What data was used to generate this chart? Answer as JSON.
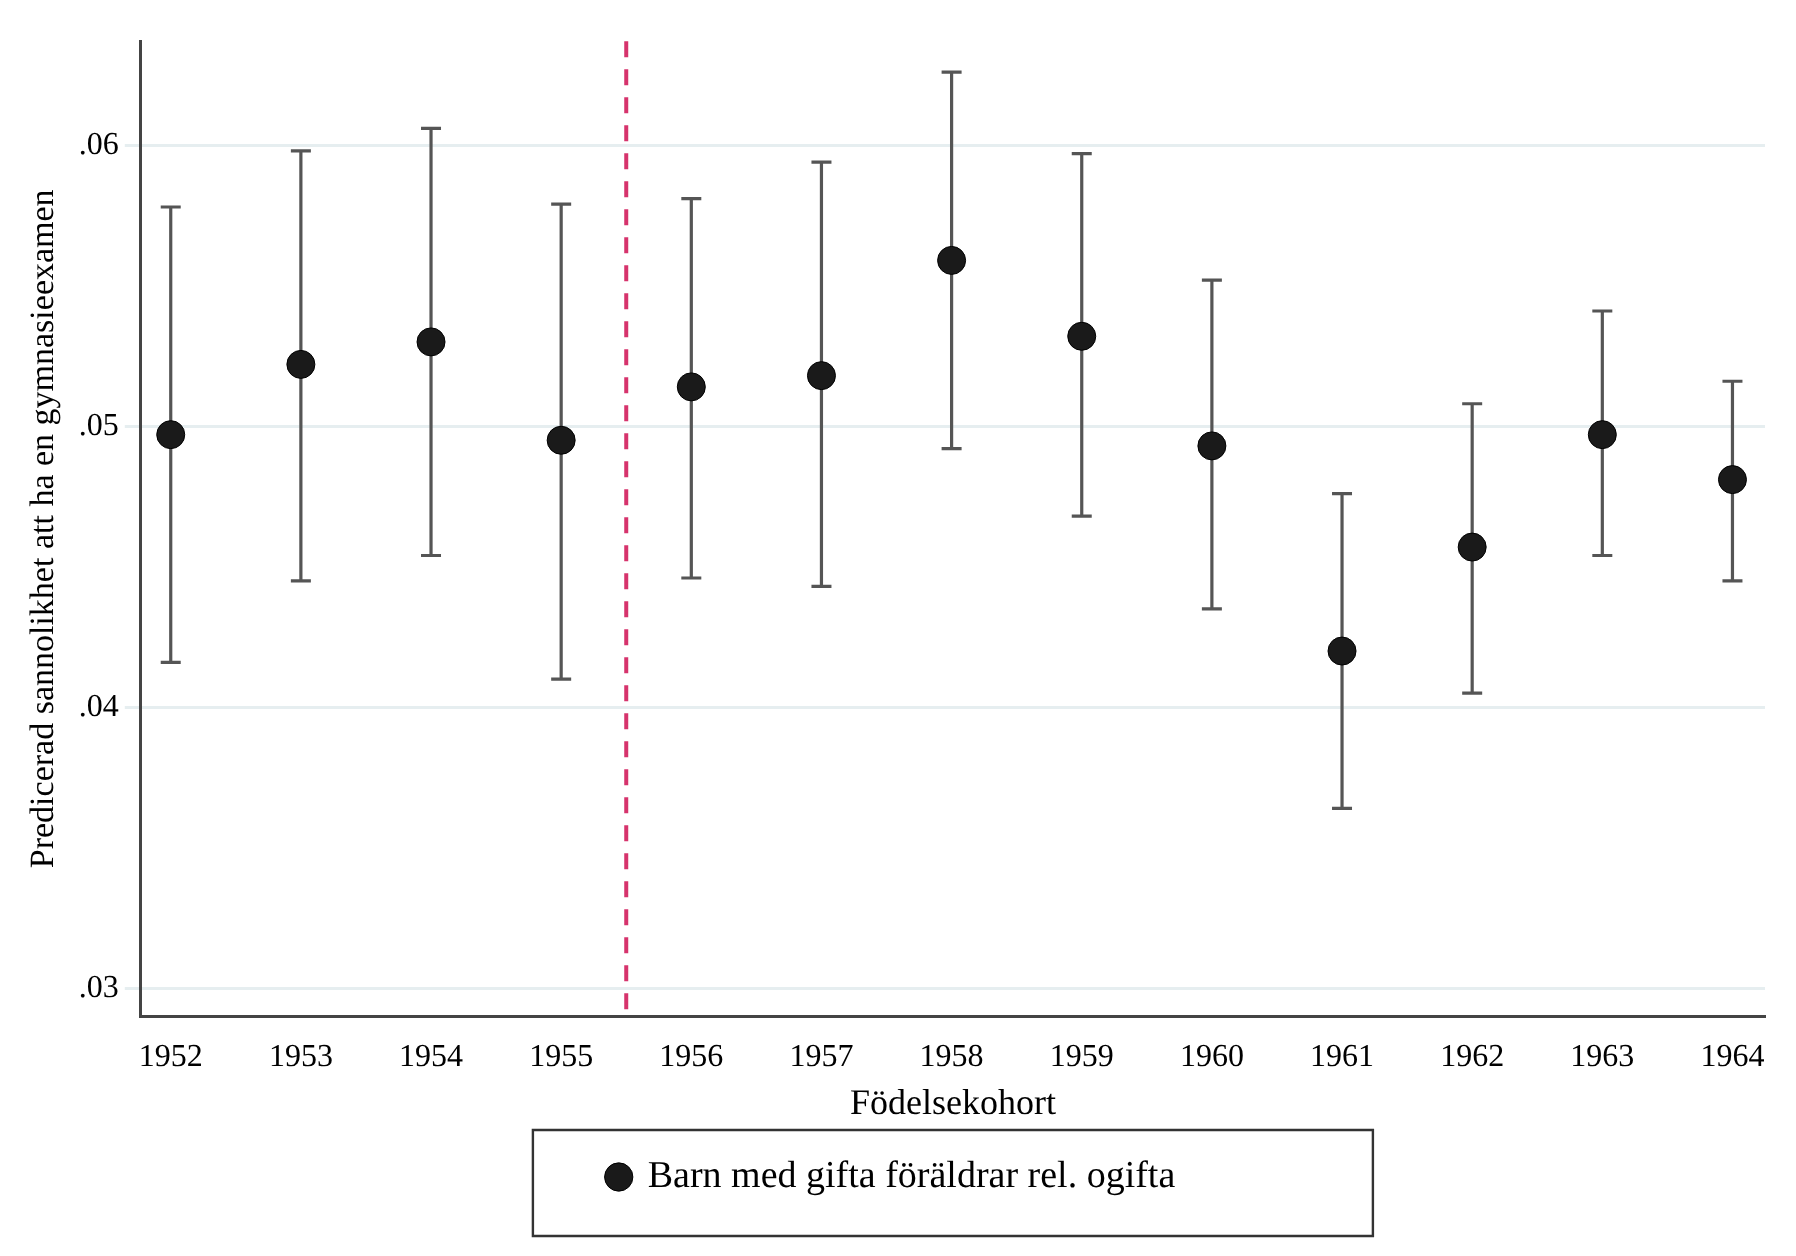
{
  "chart_data": {
    "type": "scatter",
    "xlabel": "Födelsekohort",
    "ylabel": "Predicerad sannolikhet att ha en gymnasieexamen",
    "x": [
      1952,
      1953,
      1954,
      1955,
      1956,
      1957,
      1958,
      1959,
      1960,
      1961,
      1962,
      1963,
      1964
    ],
    "series": [
      {
        "name": "Barn med gifta föräldrar rel. ogifta",
        "color": "#1a1a1a",
        "values": [
          0.0497,
          0.0522,
          0.053,
          0.0495,
          0.0514,
          0.0518,
          0.0559,
          0.0532,
          0.0493,
          0.042,
          0.0457,
          0.0497,
          0.0481
        ],
        "errors": [
          [
            0.0416,
            0.0578
          ],
          [
            0.0445,
            0.0598
          ],
          [
            0.0454,
            0.0606
          ],
          [
            0.041,
            0.0579
          ],
          [
            0.0446,
            0.0581
          ],
          [
            0.0443,
            0.0594
          ],
          [
            0.0492,
            0.0626
          ],
          [
            0.0468,
            0.0597
          ],
          [
            0.0435,
            0.0552
          ],
          [
            0.0364,
            0.0476
          ],
          [
            0.0405,
            0.0508
          ],
          [
            0.0454,
            0.0541
          ],
          [
            0.0445,
            0.0516
          ]
        ]
      }
    ],
    "xlim": [
      1951.77,
      1964.25
    ],
    "xticks": [
      1952,
      1953,
      1954,
      1955,
      1956,
      1957,
      1958,
      1959,
      1960,
      1961,
      1962,
      1963,
      1964
    ],
    "ylim": [
      0.029,
      0.0637
    ],
    "yticks": [
      {
        "value": 0.03,
        "label": ".03"
      },
      {
        "value": 0.04,
        "label": ".04"
      },
      {
        "value": 0.05,
        "label": ".05"
      },
      {
        "value": 0.06,
        "label": ".06"
      }
    ],
    "ref_lines": [
      {
        "axis": "x",
        "value": 1955.5,
        "color": "#d6336c",
        "line_style": "dashed"
      }
    ],
    "grid": "y",
    "legend": "bottom",
    "marker": "circle"
  }
}
